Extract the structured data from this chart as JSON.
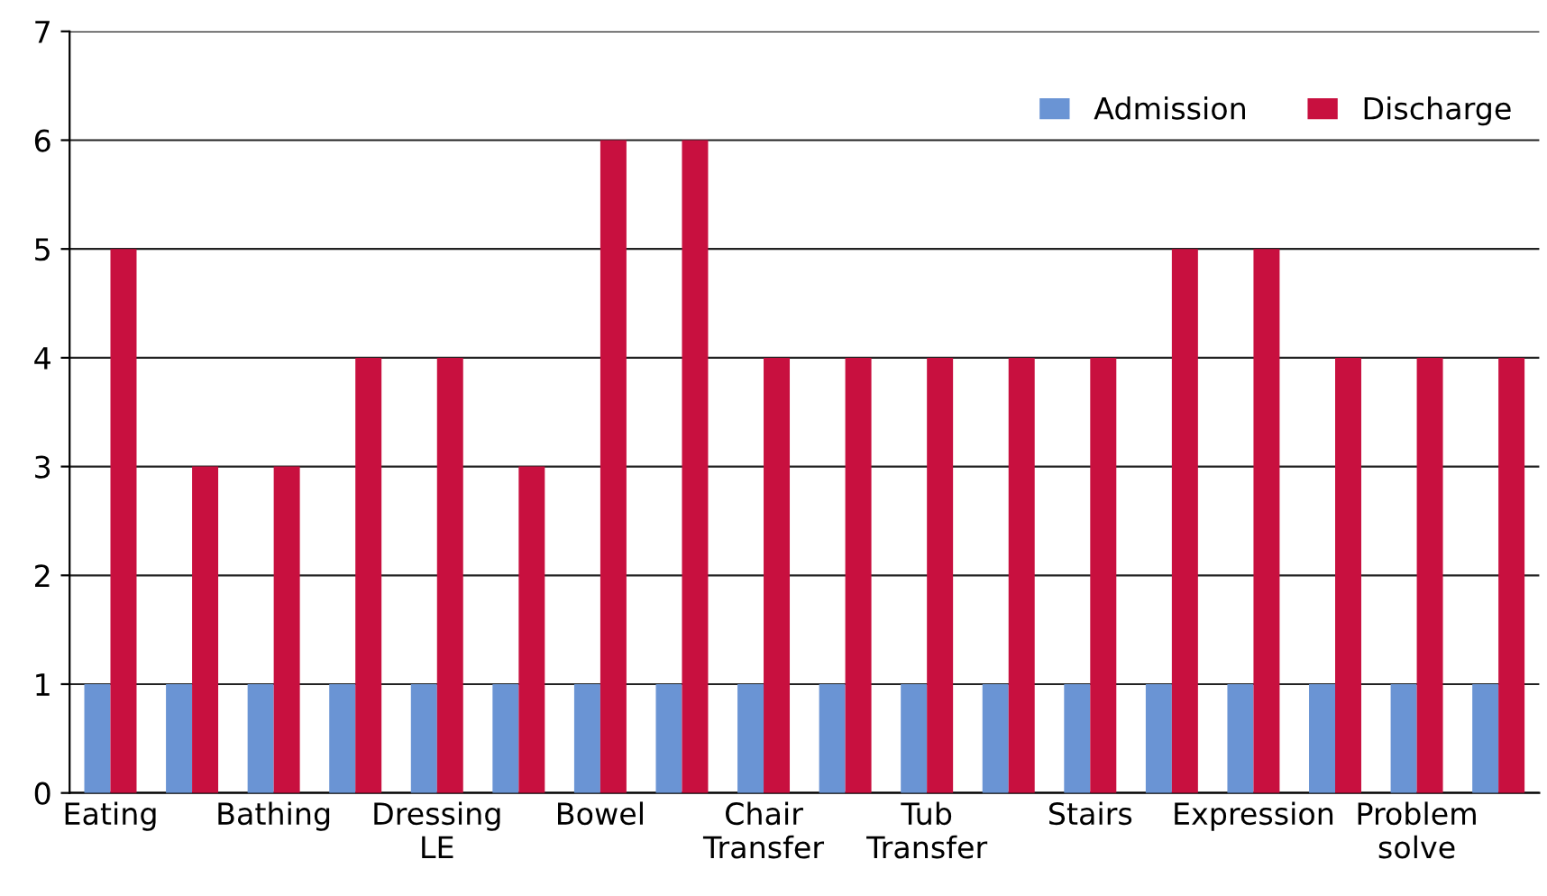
{
  "chart_data": {
    "type": "bar",
    "categories": [
      "Eating",
      null,
      "Bathing",
      null,
      "Dressing\nLE",
      null,
      "Bowel",
      null,
      "Chair\nTransfer",
      null,
      "Tub\nTransfer",
      null,
      "Stairs",
      null,
      "Expression",
      null,
      "Problem\nsolve",
      null
    ],
    "series": [
      {
        "name": "Admission",
        "color": "#6a94d4",
        "values": [
          1,
          1,
          1,
          1,
          1,
          1,
          1,
          1,
          1,
          1,
          1,
          1,
          1,
          1,
          1,
          1,
          1,
          1
        ]
      },
      {
        "name": "Discharge",
        "color": "#c8103f",
        "values": [
          5,
          3,
          3,
          4,
          4,
          3,
          6,
          6,
          4,
          4,
          4,
          4,
          4,
          5,
          5,
          4,
          4,
          4
        ]
      }
    ],
    "ylim": [
      0,
      7
    ],
    "yticks": [
      0,
      1,
      2,
      3,
      4,
      5,
      6,
      7
    ],
    "grid": "y",
    "legend": "top right"
  }
}
